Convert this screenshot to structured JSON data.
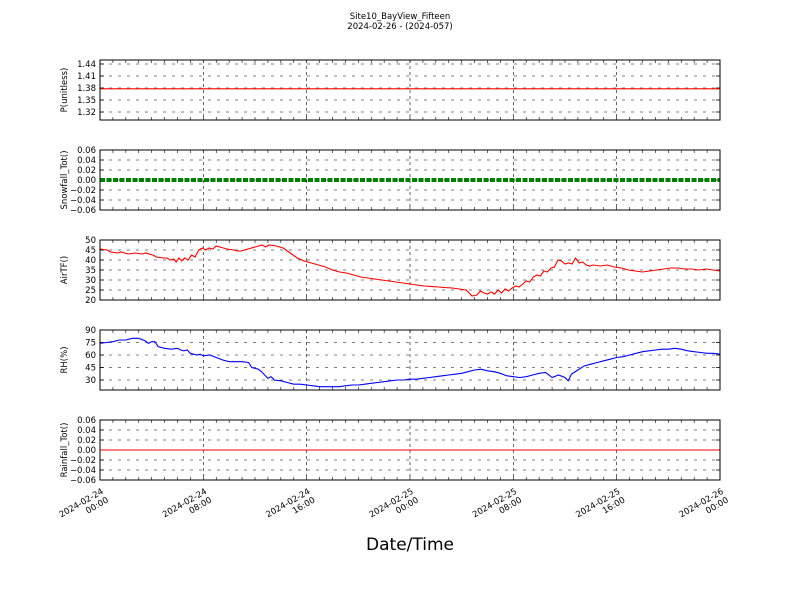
{
  "chart_data": {
    "type": "line",
    "title": "Site10_BayView_Fifteen",
    "subtitle": "2024-02-26 - (2024-057)",
    "xlabel": "Date/Time",
    "x_ticks": [
      {
        "t": 0,
        "line1": "2024-02-24",
        "line2": "00:00"
      },
      {
        "t": 8,
        "line1": "2024-02-24",
        "line2": "08:00"
      },
      {
        "t": 16,
        "line1": "2024-02-24",
        "line2": "16:00"
      },
      {
        "t": 24,
        "line1": "2024-02-25",
        "line2": "00:00"
      },
      {
        "t": 32,
        "line1": "2024-02-25",
        "line2": "08:00"
      },
      {
        "t": 40,
        "line1": "2024-02-25",
        "line2": "16:00"
      },
      {
        "t": 48,
        "line1": "2024-02-26",
        "line2": "00:00"
      }
    ],
    "x_range": [
      "2024-02-24 00:00",
      "2024-02-26 00:00"
    ],
    "grid": true,
    "panels": [
      {
        "id": "p",
        "ylabel": "P(unitless)",
        "ylim": [
          1.3,
          1.45
        ],
        "yticks": [
          "1.32",
          "1.35",
          "1.38",
          "1.41",
          "1.44"
        ],
        "ytick_values": [
          1.32,
          1.35,
          1.38,
          1.41,
          1.44
        ],
        "color": "#ff0000",
        "style": "line",
        "series": [
          {
            "x": 0,
            "y": 1.378
          },
          {
            "x": 48,
            "y": 1.378
          }
        ]
      },
      {
        "id": "snowfall",
        "ylabel": "Snowfall_Tot()",
        "ylim": [
          -0.06,
          0.06
        ],
        "yticks": [
          "0.06",
          "0.04",
          "0.02",
          "0.00",
          "−0.02",
          "−0.04",
          "−0.06"
        ],
        "ytick_values": [
          0.06,
          0.04,
          0.02,
          0.0,
          -0.02,
          -0.04,
          -0.06
        ],
        "color": "#008000",
        "style": "thick",
        "series": [
          {
            "x": 0,
            "y": 0.0
          },
          {
            "x": 48,
            "y": 0.0
          }
        ]
      },
      {
        "id": "airtf",
        "ylabel": "AirTF()",
        "ylim": [
          20,
          50
        ],
        "yticks": [
          "50",
          "45",
          "40",
          "35",
          "30",
          "25",
          "20"
        ],
        "ytick_values": [
          50,
          45,
          40,
          35,
          30,
          25,
          20
        ],
        "color": "#ff0000",
        "style": "line",
        "series": [
          {
            "x": 0,
            "y": 45.5
          },
          {
            "x": 1,
            "y": 45
          },
          {
            "x": 1.5,
            "y": 44
          },
          {
            "x": 2.5,
            "y": 43.5
          },
          {
            "x": 3,
            "y": 44
          },
          {
            "x": 4,
            "y": 43
          },
          {
            "x": 5,
            "y": 43.5
          },
          {
            "x": 6,
            "y": 43
          },
          {
            "x": 6.5,
            "y": 43.5
          },
          {
            "x": 7.5,
            "y": 42.5
          },
          {
            "x": 8,
            "y": 41.5
          },
          {
            "x": 9,
            "y": 41
          },
          {
            "x": 9.5,
            "y": 41
          },
          {
            "x": 10,
            "y": 40
          },
          {
            "x": 10.5,
            "y": 40.5
          },
          {
            "x": 10.8,
            "y": 39
          },
          {
            "x": 11.2,
            "y": 41
          },
          {
            "x": 11.6,
            "y": 39.5
          },
          {
            "x": 12,
            "y": 41
          },
          {
            "x": 12.5,
            "y": 40
          },
          {
            "x": 13,
            "y": 42.5
          },
          {
            "x": 13.5,
            "y": 41.5
          },
          {
            "x": 14,
            "y": 45
          },
          {
            "x": 14.5,
            "y": 46
          },
          {
            "x": 15,
            "y": 45
          },
          {
            "x": 15.5,
            "y": 46
          },
          {
            "x": 16,
            "y": 45.5
          },
          {
            "x": 16.5,
            "y": 47
          },
          {
            "x": 17,
            "y": 46.5
          },
          {
            "x": 18,
            "y": 45.5
          },
          {
            "x": 19,
            "y": 45
          },
          {
            "x": 19.5,
            "y": 44.5
          },
          {
            "x": 20,
            "y": 44.5
          },
          {
            "x": 21,
            "y": 45.5
          },
          {
            "x": 22,
            "y": 46.5
          },
          {
            "x": 23,
            "y": 47.5
          },
          {
            "x": 23.5,
            "y": 46.5
          },
          {
            "x": 24,
            "y": 47.5
          },
          {
            "x": 25,
            "y": 47
          },
          {
            "x": 26,
            "y": 46
          },
          {
            "x": 27,
            "y": 43.5
          },
          {
            "x": 28,
            "y": 41
          },
          {
            "x": 29,
            "y": 39.5
          },
          {
            "x": 30,
            "y": 38.5
          },
          {
            "x": 31,
            "y": 37.5
          },
          {
            "x": 32,
            "y": 36.5
          },
          {
            "x": 33,
            "y": 35
          },
          {
            "x": 34,
            "y": 34
          },
          {
            "x": 35,
            "y": 33.5
          },
          {
            "x": 36,
            "y": 32.5
          },
          {
            "x": 37,
            "y": 31.5
          },
          {
            "x": 38,
            "y": 31
          },
          {
            "x": 39,
            "y": 30.5
          },
          {
            "x": 40,
            "y": 30
          },
          {
            "x": 41,
            "y": 29.5
          },
          {
            "x": 42,
            "y": 29
          },
          {
            "x": 43,
            "y": 28.5
          },
          {
            "x": 44,
            "y": 28
          },
          {
            "x": 45,
            "y": 27.5
          },
          {
            "x": 46,
            "y": 27
          },
          {
            "x": 47,
            "y": 26.8
          },
          {
            "x": 48,
            "y": 26.5
          },
          {
            "x": 49,
            "y": 26.2
          },
          {
            "x": 50,
            "y": 26
          },
          {
            "x": 51,
            "y": 25.5
          },
          {
            "x": 52,
            "y": 25
          },
          {
            "x": 52.8,
            "y": 22
          },
          {
            "x": 53.5,
            "y": 22.5
          },
          {
            "x": 54,
            "y": 24.5
          },
          {
            "x": 54.5,
            "y": 23.5
          },
          {
            "x": 55,
            "y": 23
          },
          {
            "x": 55.5,
            "y": 24
          },
          {
            "x": 56,
            "y": 23
          },
          {
            "x": 56.5,
            "y": 25
          },
          {
            "x": 57,
            "y": 23.5
          },
          {
            "x": 57.5,
            "y": 25.5
          },
          {
            "x": 58,
            "y": 24.5
          },
          {
            "x": 58.5,
            "y": 26
          },
          {
            "x": 59,
            "y": 27
          },
          {
            "x": 59.5,
            "y": 26.5
          },
          {
            "x": 60,
            "y": 28
          },
          {
            "x": 60.5,
            "y": 29.5
          },
          {
            "x": 61,
            "y": 29
          },
          {
            "x": 61.5,
            "y": 31.5
          },
          {
            "x": 62,
            "y": 32.5
          },
          {
            "x": 62.5,
            "y": 32
          },
          {
            "x": 63,
            "y": 34.5
          },
          {
            "x": 63.5,
            "y": 34
          },
          {
            "x": 64,
            "y": 36
          },
          {
            "x": 64.5,
            "y": 36.5
          },
          {
            "x": 65,
            "y": 40
          },
          {
            "x": 65.5,
            "y": 39.5
          },
          {
            "x": 66,
            "y": 38
          },
          {
            "x": 66.5,
            "y": 38.5
          },
          {
            "x": 67,
            "y": 38
          },
          {
            "x": 67.5,
            "y": 41
          },
          {
            "x": 68,
            "y": 38.5
          },
          {
            "x": 68.5,
            "y": 39
          },
          {
            "x": 69,
            "y": 37.5
          },
          {
            "x": 69.5,
            "y": 37
          },
          {
            "x": 70,
            "y": 37.5
          },
          {
            "x": 71,
            "y": 37
          },
          {
            "x": 72,
            "y": 37.5
          },
          {
            "x": 73,
            "y": 36.5
          },
          {
            "x": 74,
            "y": 36
          },
          {
            "x": 75,
            "y": 35
          },
          {
            "x": 76,
            "y": 34.5
          },
          {
            "x": 77,
            "y": 34
          },
          {
            "x": 78,
            "y": 34.5
          },
          {
            "x": 79,
            "y": 35
          },
          {
            "x": 80,
            "y": 35.5
          },
          {
            "x": 81,
            "y": 36
          },
          {
            "x": 82,
            "y": 36
          },
          {
            "x": 83,
            "y": 35.5
          },
          {
            "x": 84,
            "y": 35.5
          },
          {
            "x": 85,
            "y": 35
          },
          {
            "x": 86,
            "y": 35.5
          },
          {
            "x": 87,
            "y": 35
          },
          {
            "x": 88,
            "y": 34.5
          }
        ],
        "x_scale": 0.5454545
      },
      {
        "id": "rh",
        "ylabel": "RH(%)",
        "ylim": [
          18,
          90
        ],
        "yticks": [
          "90",
          "75",
          "60",
          "45",
          "30"
        ],
        "ytick_values": [
          90,
          75,
          60,
          45,
          30
        ],
        "color": "#0000ff",
        "style": "line",
        "series": [
          {
            "x": 0,
            "y": 74
          },
          {
            "x": 1,
            "y": 75
          },
          {
            "x": 2,
            "y": 76
          },
          {
            "x": 3,
            "y": 78
          },
          {
            "x": 4,
            "y": 78
          },
          {
            "x": 5,
            "y": 80
          },
          {
            "x": 6,
            "y": 80
          },
          {
            "x": 7,
            "y": 77
          },
          {
            "x": 7.5,
            "y": 74
          },
          {
            "x": 8,
            "y": 76
          },
          {
            "x": 8.5,
            "y": 76
          },
          {
            "x": 9,
            "y": 70
          },
          {
            "x": 10,
            "y": 68
          },
          {
            "x": 11,
            "y": 67
          },
          {
            "x": 12,
            "y": 68
          },
          {
            "x": 12.5,
            "y": 66
          },
          {
            "x": 13,
            "y": 65
          },
          {
            "x": 13.5,
            "y": 66
          },
          {
            "x": 14,
            "y": 62
          },
          {
            "x": 15,
            "y": 60
          },
          {
            "x": 15.5,
            "y": 61
          },
          {
            "x": 16,
            "y": 59
          },
          {
            "x": 17,
            "y": 60
          },
          {
            "x": 18,
            "y": 57
          },
          {
            "x": 19,
            "y": 54
          },
          {
            "x": 20,
            "y": 52
          },
          {
            "x": 21,
            "y": 52
          },
          {
            "x": 22,
            "y": 52
          },
          {
            "x": 23,
            "y": 51
          },
          {
            "x": 23.5,
            "y": 45
          },
          {
            "x": 24.5,
            "y": 43
          },
          {
            "x": 25,
            "y": 40
          },
          {
            "x": 25.5,
            "y": 36
          },
          {
            "x": 26,
            "y": 32
          },
          {
            "x": 26.5,
            "y": 34
          },
          {
            "x": 27,
            "y": 30
          },
          {
            "x": 28,
            "y": 29
          },
          {
            "x": 29,
            "y": 27
          },
          {
            "x": 30,
            "y": 25
          },
          {
            "x": 31,
            "y": 25
          },
          {
            "x": 32,
            "y": 24
          },
          {
            "x": 33,
            "y": 23
          },
          {
            "x": 34,
            "y": 22
          },
          {
            "x": 35,
            "y": 22
          },
          {
            "x": 36,
            "y": 22
          },
          {
            "x": 37,
            "y": 22
          },
          {
            "x": 38,
            "y": 23
          },
          {
            "x": 39,
            "y": 24
          },
          {
            "x": 40,
            "y": 24
          },
          {
            "x": 41,
            "y": 25
          },
          {
            "x": 42,
            "y": 26
          },
          {
            "x": 43,
            "y": 27
          },
          {
            "x": 44,
            "y": 28
          },
          {
            "x": 45,
            "y": 29
          },
          {
            "x": 46,
            "y": 30
          },
          {
            "x": 47,
            "y": 30
          },
          {
            "x": 48,
            "y": 31
          },
          {
            "x": 49,
            "y": 31
          },
          {
            "x": 50,
            "y": 32
          },
          {
            "x": 51,
            "y": 33
          },
          {
            "x": 52,
            "y": 34
          },
          {
            "x": 53,
            "y": 35
          },
          {
            "x": 54,
            "y": 36
          },
          {
            "x": 55,
            "y": 37
          },
          {
            "x": 56,
            "y": 38
          },
          {
            "x": 57,
            "y": 40
          },
          {
            "x": 58,
            "y": 42
          },
          {
            "x": 59,
            "y": 43
          },
          {
            "x": 60,
            "y": 41
          },
          {
            "x": 61,
            "y": 40
          },
          {
            "x": 62,
            "y": 38
          },
          {
            "x": 63,
            "y": 35
          },
          {
            "x": 64,
            "y": 34
          },
          {
            "x": 65,
            "y": 33
          },
          {
            "x": 66,
            "y": 34
          },
          {
            "x": 67,
            "y": 36
          },
          {
            "x": 68,
            "y": 38
          },
          {
            "x": 69,
            "y": 39
          },
          {
            "x": 70,
            "y": 33
          },
          {
            "x": 71,
            "y": 36
          },
          {
            "x": 72,
            "y": 33
          },
          {
            "x": 72.5,
            "y": 29
          },
          {
            "x": 73,
            "y": 37
          },
          {
            "x": 74,
            "y": 42
          },
          {
            "x": 75,
            "y": 47
          },
          {
            "x": 76,
            "y": 49
          },
          {
            "x": 77,
            "y": 51
          },
          {
            "x": 78,
            "y": 53
          },
          {
            "x": 79,
            "y": 55
          },
          {
            "x": 80,
            "y": 57
          },
          {
            "x": 81,
            "y": 58
          },
          {
            "x": 82,
            "y": 60
          },
          {
            "x": 83,
            "y": 62
          },
          {
            "x": 84,
            "y": 64
          },
          {
            "x": 85,
            "y": 65
          },
          {
            "x": 86,
            "y": 66
          },
          {
            "x": 87,
            "y": 67
          },
          {
            "x": 88,
            "y": 67
          },
          {
            "x": 89,
            "y": 68
          },
          {
            "x": 90,
            "y": 67
          },
          {
            "x": 91,
            "y": 65
          },
          {
            "x": 92,
            "y": 64
          },
          {
            "x": 93,
            "y": 63
          },
          {
            "x": 94,
            "y": 62
          },
          {
            "x": 95,
            "y": 62
          },
          {
            "x": 96,
            "y": 61
          }
        ],
        "x_scale": 0.5
      },
      {
        "id": "rainfall",
        "ylabel": "Rainfall_Tot()",
        "ylim": [
          -0.06,
          0.06
        ],
        "yticks": [
          "0.06",
          "0.04",
          "0.02",
          "0.00",
          "−0.02",
          "−0.04",
          "−0.06"
        ],
        "ytick_values": [
          0.06,
          0.04,
          0.02,
          0.0,
          -0.02,
          -0.04,
          -0.06
        ],
        "color": "#ff0000",
        "style": "line",
        "series": [
          {
            "x": 0,
            "y": 0.0
          },
          {
            "x": 48,
            "y": 0.0
          }
        ]
      }
    ]
  }
}
